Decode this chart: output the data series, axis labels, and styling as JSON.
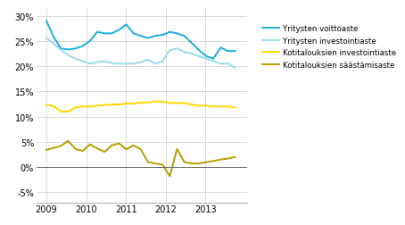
{
  "legend_entries": [
    "Yritysten voittoaste",
    "Yritysten investointiaste",
    "Kotitalouksien investointiaste",
    "Kotitalouksien säästämisaste"
  ],
  "colors": [
    "#1aadde",
    "#99d9ea",
    "#ffd700",
    "#b5a000"
  ],
  "linewidths": [
    1.4,
    1.4,
    1.4,
    1.4
  ],
  "ylim": [
    -0.07,
    0.315
  ],
  "yticks": [
    -0.05,
    0.0,
    0.05,
    0.1,
    0.15,
    0.2,
    0.25,
    0.3
  ],
  "background_color": "#ffffff",
  "grid_color": "#cccccc",
  "yritysten_voittoaste": [
    0.29,
    0.258,
    0.235,
    0.233,
    0.235,
    0.24,
    0.25,
    0.268,
    0.265,
    0.265,
    0.272,
    0.283,
    0.265,
    0.26,
    0.256,
    0.26,
    0.262,
    0.268,
    0.265,
    0.26,
    0.246,
    0.232,
    0.22,
    0.215,
    0.237,
    0.23,
    0.23
  ],
  "yritysten_investointiaste": [
    0.256,
    0.245,
    0.232,
    0.222,
    0.215,
    0.21,
    0.205,
    0.208,
    0.21,
    0.206,
    0.205,
    0.205,
    0.205,
    0.208,
    0.213,
    0.205,
    0.21,
    0.232,
    0.235,
    0.228,
    0.225,
    0.22,
    0.215,
    0.21,
    0.205,
    0.205,
    0.197
  ],
  "kotitalouksien_investointiaste": [
    0.123,
    0.121,
    0.11,
    0.11,
    0.118,
    0.12,
    0.12,
    0.122,
    0.123,
    0.124,
    0.124,
    0.126,
    0.126,
    0.128,
    0.128,
    0.13,
    0.13,
    0.127,
    0.127,
    0.127,
    0.124,
    0.122,
    0.122,
    0.12,
    0.12,
    0.12,
    0.118
  ],
  "kotitalouksien_saastamisaste": [
    0.034,
    0.038,
    0.042,
    0.052,
    0.036,
    0.032,
    0.045,
    0.037,
    0.03,
    0.043,
    0.047,
    0.035,
    0.043,
    0.035,
    0.01,
    0.007,
    0.005,
    -0.018,
    0.036,
    0.01,
    0.007,
    0.007,
    0.01,
    0.012,
    0.015,
    0.017,
    0.02
  ],
  "n_points": 27,
  "xlim_left": 2008.75,
  "xlim_right": 2014.05,
  "x_tick_positions": [
    2009,
    2010,
    2011,
    2012,
    2013
  ]
}
